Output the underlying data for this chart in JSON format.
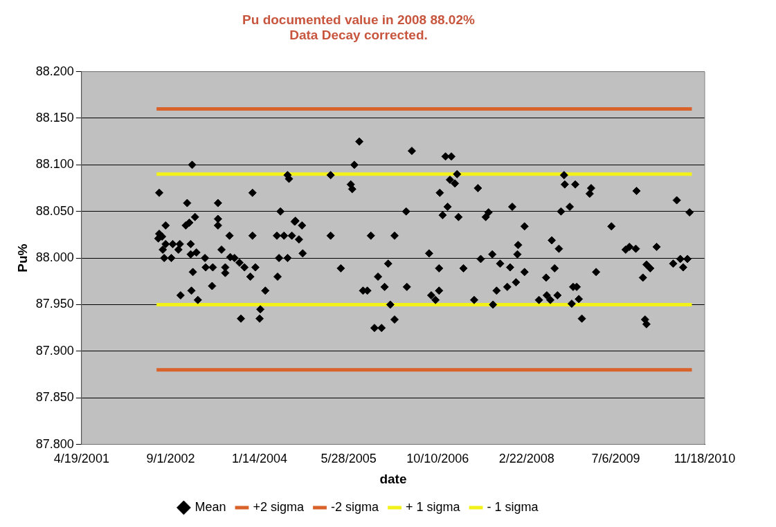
{
  "chart_data": {
    "type": "scatter",
    "title": "Pu documented value in 2008 88.02%\nData Decay corrected.",
    "xlabel": "date",
    "ylabel": "Pu%",
    "grid": "y",
    "legend": "bottom",
    "xlim": [
      "2001-04-19",
      "2010-11-18"
    ],
    "xticks": [
      {
        "value": "2001-04-19",
        "label": "4/19/2001"
      },
      {
        "value": "2002-09-01",
        "label": "9/1/2002"
      },
      {
        "value": "2004-01-14",
        "label": "1/14/2004"
      },
      {
        "value": "2005-05-28",
        "label": "5/28/2005"
      },
      {
        "value": "2006-10-10",
        "label": "10/10/2006"
      },
      {
        "value": "2008-02-22",
        "label": "2/22/2008"
      },
      {
        "value": "2009-07-06",
        "label": "7/6/2009"
      },
      {
        "value": "2010-11-18",
        "label": "11/18/2010"
      }
    ],
    "ylim": [
      87.8,
      88.2
    ],
    "yticks": [
      {
        "value": 87.8,
        "label": "87.800"
      },
      {
        "value": 87.85,
        "label": "87.850"
      },
      {
        "value": 87.9,
        "label": "87.900"
      },
      {
        "value": 87.95,
        "label": "87.950"
      },
      {
        "value": 88.0,
        "label": "88.000"
      },
      {
        "value": 88.05,
        "label": "88.050"
      },
      {
        "value": 88.1,
        "label": "88.100"
      },
      {
        "value": 88.15,
        "label": "88.150"
      },
      {
        "value": 88.2,
        "label": "88.200"
      }
    ],
    "series": [
      {
        "name": "Mean",
        "marker": "diamond",
        "color": "#000000",
        "x": [
          "2002-06-29",
          "2002-12-31",
          "2002-12-03",
          "2003-05-25",
          "2003-12-05",
          "2004-06-19",
          "2004-06-27",
          "2004-05-10",
          "2003-01-16",
          "2002-12-15",
          "2002-11-25",
          "2002-08-04",
          "2003-05-25",
          "2003-05-25",
          "2002-06-29",
          "2002-06-24",
          "2002-07-15",
          "2003-07-29",
          "2003-12-05",
          "2004-04-20",
          "2004-05-30",
          "2004-07-13",
          "2004-07-29",
          "2002-08-04",
          "2002-09-13",
          "2002-10-23",
          "2002-12-23",
          "2002-07-19",
          "2002-10-15",
          "2003-06-14",
          "2002-07-27",
          "2002-09-05",
          "2002-12-23",
          "2003-01-24",
          "2003-03-13",
          "2003-08-02",
          "2003-08-26",
          "2003-09-23",
          "2003-03-17",
          "2003-04-26",
          "2003-07-05",
          "2003-07-05",
          "2003-10-21",
          "2003-12-21",
          "2004-05-02",
          "2004-06-19",
          "2003-01-04",
          "2003-11-23",
          "2004-04-24",
          "2003-04-22",
          "2002-12-27",
          "2002-10-27",
          "2003-02-01",
          "2004-02-15",
          "2004-01-18",
          "2004-01-14",
          "2003-10-01",
          "2005-07-27",
          "2006-05-18",
          "2006-11-23",
          "2006-12-26",
          "2005-06-29",
          "2005-02-16",
          "2005-06-09",
          "2005-06-17",
          "2006-12-18",
          "2006-10-22",
          "2006-12-05",
          "2006-11-07",
          "2006-04-16",
          "2004-08-02",
          "2004-09-08",
          "2004-08-22",
          "2005-02-16",
          "2005-09-30",
          "2006-02-10",
          "2004-09-12",
          "2006-08-23",
          "2005-04-14",
          "2006-01-05",
          "2006-10-18",
          "2005-11-09",
          "2005-12-16",
          "2006-04-20",
          "2005-08-17",
          "2005-09-10",
          "2006-09-04",
          "2006-09-28",
          "2006-10-18",
          "2006-01-17",
          "2006-02-10",
          "2005-10-20",
          "2005-11-29",
          "2007-01-27",
          "2007-01-15",
          "2007-05-24",
          "2008-09-19",
          "2008-09-23",
          "2008-11-21",
          "2009-02-18",
          "2009-02-10",
          "2007-12-03",
          "2008-10-21",
          "2008-09-02",
          "2007-02-04",
          "2007-07-23",
          "2007-07-07",
          "2008-02-10",
          "2009-06-12",
          "2008-07-12",
          "2008-01-05",
          "2008-08-21",
          "2008-01-01",
          "2007-08-13",
          "2007-06-09",
          "2007-03-04",
          "2007-09-26",
          "2007-11-21",
          "2008-02-10",
          "2008-07-28",
          "2009-03-18",
          "2008-06-10",
          "2007-12-24",
          "2007-11-05",
          "2007-09-06",
          "2008-11-09",
          "2008-11-29",
          "2008-05-01",
          "2008-06-14",
          "2008-08-13",
          "2008-07-04",
          "2007-05-03",
          "2007-08-17",
          "2008-11-01",
          "2008-12-11",
          "2008-12-28",
          "2009-10-31",
          "2010-06-14",
          "2010-08-25",
          "2009-09-21",
          "2009-08-31",
          "2009-10-27",
          "2010-02-21",
          "2009-12-26",
          "2010-01-16",
          "2009-12-06",
          "2010-07-04",
          "2010-08-13",
          "2010-05-25",
          "2010-07-20",
          "2009-12-18",
          "2009-12-26"
        ],
        "values": [
          88.07,
          88.1,
          88.059,
          88.059,
          88.07,
          88.089,
          88.085,
          88.05,
          88.044,
          88.038,
          88.035,
          88.035,
          88.042,
          88.035,
          88.026,
          88.021,
          88.023,
          88.024,
          88.024,
          88.024,
          88.024,
          88.024,
          88.039,
          88.015,
          88.015,
          88.015,
          88.015,
          88.009,
          88.009,
          88.009,
          88.0,
          88.0,
          88.004,
          88.006,
          88.0,
          88.001,
          88.0,
          87.995,
          87.99,
          87.99,
          87.99,
          87.984,
          87.99,
          87.99,
          88.0,
          88.0,
          87.985,
          87.98,
          87.98,
          87.97,
          87.965,
          87.96,
          87.955,
          87.965,
          87.945,
          87.935,
          87.935,
          88.125,
          88.115,
          88.109,
          88.109,
          88.1,
          88.089,
          88.079,
          88.074,
          88.084,
          88.07,
          88.055,
          88.046,
          88.05,
          88.04,
          88.035,
          88.02,
          88.024,
          88.024,
          88.024,
          88.005,
          88.005,
          87.989,
          87.994,
          87.989,
          87.98,
          87.969,
          87.969,
          87.965,
          87.965,
          87.96,
          87.955,
          87.965,
          87.95,
          87.934,
          87.925,
          87.925,
          88.09,
          88.08,
          88.075,
          88.089,
          88.079,
          88.079,
          88.075,
          88.069,
          88.055,
          88.055,
          88.05,
          88.044,
          88.049,
          88.044,
          88.034,
          88.034,
          88.019,
          88.014,
          88.01,
          88.004,
          88.004,
          87.999,
          87.989,
          87.994,
          87.99,
          87.985,
          87.989,
          87.985,
          87.979,
          87.974,
          87.969,
          87.965,
          87.969,
          87.969,
          87.955,
          87.96,
          87.96,
          87.955,
          87.955,
          87.95,
          87.951,
          87.956,
          87.935,
          88.072,
          88.062,
          88.049,
          88.012,
          88.009,
          88.01,
          88.012,
          87.993,
          87.989,
          87.979,
          87.999,
          87.999,
          87.994,
          87.99,
          87.934,
          87.929
        ]
      },
      {
        "name": "+2 sigma",
        "type": "line",
        "marker": "none",
        "color": "#d9622b",
        "x": [
          "2002-06-14",
          "2010-09-07"
        ],
        "values": [
          88.16,
          88.16
        ]
      },
      {
        "name": "-2 sigma",
        "type": "line",
        "marker": "none",
        "color": "#d9622b",
        "x": [
          "2002-06-14",
          "2010-09-07"
        ],
        "values": [
          87.88,
          87.88
        ]
      },
      {
        "name": "+ 1 sigma",
        "type": "line",
        "marker": "none",
        "color": "#f2f21a",
        "x": [
          "2002-06-14",
          "2010-09-07"
        ],
        "values": [
          88.09,
          88.09
        ]
      },
      {
        "name": "- 1 sigma",
        "type": "line",
        "marker": "none",
        "color": "#f2f21a",
        "x": [
          "2002-06-14",
          "2010-09-07"
        ],
        "values": [
          87.95,
          87.95
        ]
      }
    ]
  }
}
